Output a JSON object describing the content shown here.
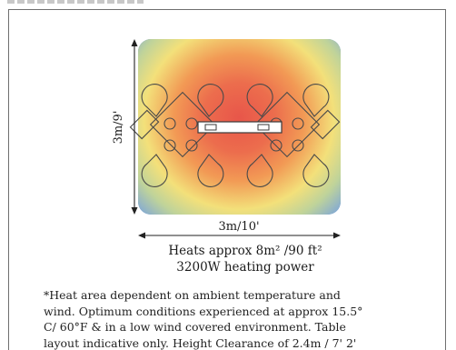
{
  "diagram": {
    "height_label": "3m/9'",
    "width_label": "3m/10'",
    "heat_colors": {
      "center": "#e8564a",
      "orange": "#f29a55",
      "yellow": "#f3e07a",
      "green": "#bfd39a",
      "outer": "#5f8fd6"
    }
  },
  "caption": {
    "heats": "Heats approx 8m² /90 ft²",
    "power": "3200W heating power"
  },
  "footnote": {
    "lines": [
      "*Heat area dependent on ambient temperature and",
      "wind. Optimum conditions experienced at approx 15.5°",
      "C/ 60°F & in a low wind covered environment. Table",
      "layout indicative only. Height Clearance of 2.4m / 7' 2'"
    ]
  }
}
